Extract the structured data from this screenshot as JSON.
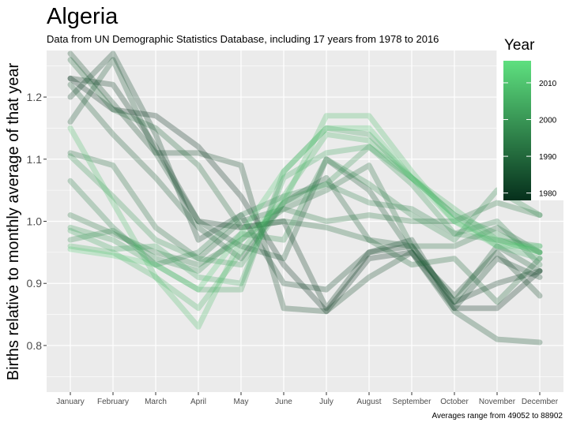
{
  "chart_data": {
    "type": "line",
    "title": "Algeria",
    "subtitle": "Data from UN Demographic Statistics Database, including 17 years from 1978 to 2016",
    "caption": "Averages range from 49052 to 88902",
    "xlabel": "",
    "ylabel": "Births relative to monthly average of that year",
    "categories": [
      "January",
      "February",
      "March",
      "April",
      "May",
      "June",
      "July",
      "August",
      "September",
      "October",
      "November",
      "December"
    ],
    "ylim": [
      0.725,
      1.275
    ],
    "yticks": [
      0.8,
      0.9,
      1.0,
      1.1,
      1.2
    ],
    "ytick_labels": [
      "0.8",
      "0.9",
      "1.0",
      "1.1",
      "1.2"
    ],
    "grid": true,
    "background": "#ebebeb",
    "legend": {
      "title": "Year",
      "position": "top-right",
      "range": [
        1978,
        2016
      ],
      "ticks": [
        1980,
        1990,
        2000,
        2010
      ],
      "tick_labels": [
        "1980",
        "1990",
        "2000",
        "2010"
      ],
      "color_low": "#06301c",
      "color_high": "#5ee07f"
    },
    "series": [
      {
        "year": 1978,
        "values": [
          1.23,
          1.18,
          1.17,
          1.12,
          1.04,
          0.93,
          0.855,
          0.94,
          0.95,
          0.86,
          0.86,
          0.92
        ]
      },
      {
        "year": 1980,
        "values": [
          1.23,
          1.22,
          1.12,
          1.0,
          0.99,
          1.0,
          0.86,
          0.95,
          0.96,
          0.87,
          0.9,
          0.92
        ]
      },
      {
        "year": 1982,
        "values": [
          1.2,
          1.27,
          1.14,
          0.97,
          1.01,
          0.9,
          0.89,
          0.95,
          0.97,
          0.86,
          0.94,
          0.91
        ]
      },
      {
        "year": 1984,
        "values": [
          1.27,
          1.19,
          1.11,
          1.11,
          1.09,
          0.86,
          0.855,
          0.91,
          0.95,
          0.88,
          0.95,
          0.88
        ]
      },
      {
        "year": 1986,
        "values": [
          1.16,
          1.26,
          1.11,
          1.0,
          0.96,
          0.94,
          1.1,
          1.05,
          0.95,
          0.855,
          0.81,
          0.805
        ]
      },
      {
        "year": 1988,
        "values": [
          1.22,
          1.14,
          1.07,
          0.99,
          0.94,
          1.03,
          1.07,
          0.97,
          0.96,
          0.87,
          0.96,
          0.92
        ]
      },
      {
        "year": 1990,
        "values": [
          1.26,
          1.18,
          1.15,
          1.09,
          0.99,
          1.0,
          0.99,
          0.97,
          0.93,
          0.94,
          0.87,
          0.94
        ]
      },
      {
        "year": 1992,
        "values": [
          1.11,
          1.09,
          0.99,
          0.94,
          1.0,
          1.02,
          1.05,
          1.09,
          0.96,
          0.96,
          0.99,
          0.95
        ]
      },
      {
        "year": 1994,
        "values": [
          1.01,
          0.98,
          0.95,
          0.93,
          0.97,
          1.02,
          1.0,
          1.01,
          1.0,
          1.0,
          1.03,
          1.01
        ]
      },
      {
        "year": 1996,
        "values": [
          1.065,
          0.99,
          0.93,
          0.95,
          1.01,
          1.04,
          1.06,
          1.03,
          1.02,
          0.98,
          1.0,
          0.93
        ]
      },
      {
        "year": 1998,
        "values": [
          0.97,
          0.985,
          0.94,
          0.92,
          0.98,
          0.97,
          1.1,
          1.06,
          1.01,
          0.97,
          1.05,
          1.01
        ]
      },
      {
        "year": 2000,
        "values": [
          1.105,
          1.04,
          0.97,
          0.94,
          0.93,
          1.03,
          1.06,
          1.12,
          1.06,
          0.98,
          0.97,
          0.96
        ]
      },
      {
        "year": 2002,
        "values": [
          0.99,
          0.97,
          0.93,
          0.89,
          0.89,
          1.08,
          1.15,
          1.14,
          1.07,
          1.01,
          0.98,
          0.95
        ]
      },
      {
        "year": 2004,
        "values": [
          0.985,
          0.955,
          0.96,
          0.91,
          0.9,
          1.07,
          1.11,
          1.12,
          1.07,
          1.01,
          0.96,
          0.94
        ]
      },
      {
        "year": 2006,
        "values": [
          0.96,
          0.95,
          0.91,
          0.86,
          0.95,
          1.04,
          1.14,
          1.13,
          1.07,
          1.02,
          0.97,
          0.95
        ]
      },
      {
        "year": 2009,
        "values": [
          1.15,
          1.03,
          0.91,
          0.83,
          0.97,
          1.03,
          1.17,
          1.17,
          1.08,
          1.0,
          0.97,
          0.95
        ]
      },
      {
        "year": 2012,
        "values": [
          0.955,
          0.945,
          0.93,
          0.89,
          0.98,
          1.08,
          1.15,
          1.15,
          1.07,
          1.0,
          0.96,
          0.96
        ]
      }
    ]
  }
}
